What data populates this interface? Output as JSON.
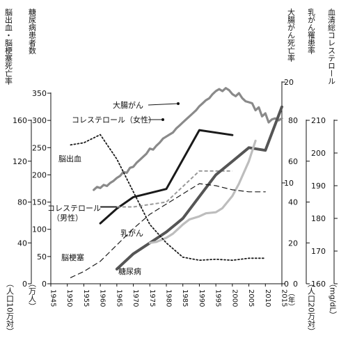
{
  "chart_data": {
    "type": "line",
    "title": "",
    "axis_labels": {
      "brain": "脳出血・脳梗塞死亡率",
      "brain_unit": "（人口10万対）",
      "diabetes": "糖尿病患者数",
      "diabetes_unit": "（万人）",
      "colon": "大腸がん死亡率",
      "breast": "乳がん罹患率",
      "breast_unit": "（人口20万対）",
      "chol": "血清総コレステロール",
      "chol_unit": "（mg/dL）",
      "x_unit": "（年）"
    },
    "axes": {
      "x": {
        "min": 1945,
        "max": 2015,
        "ticks": [
          1945,
          1950,
          1955,
          1960,
          1965,
          1970,
          1975,
          1980,
          1985,
          1990,
          1995,
          2000,
          2005,
          2010,
          2015
        ]
      },
      "brain": {
        "min": 0,
        "max": 160,
        "ticks": [
          0,
          40,
          80,
          120,
          160
        ]
      },
      "diabetes": {
        "min": 0,
        "max": 350,
        "ticks": [
          0,
          50,
          100,
          150,
          200,
          250,
          300,
          350
        ]
      },
      "colon": {
        "min": 0,
        "max": 20,
        "ticks": [
          0,
          10,
          20
        ]
      },
      "breast": {
        "min": 0,
        "max": 80,
        "ticks": [
          0,
          20,
          40,
          60,
          80
        ]
      },
      "chol": {
        "min": 160,
        "max": 210,
        "ticks": [
          160,
          170,
          180,
          190,
          200,
          210
        ]
      }
    },
    "series": [
      {
        "key": "colon",
        "name": "大腸がん",
        "axis": "colon",
        "color": "#8a8a8a",
        "dash": "",
        "x": [
          1958,
          1959,
          1960,
          1961,
          1962,
          1963,
          1964,
          1965,
          1966,
          1967,
          1968,
          1969,
          1970,
          1971,
          1972,
          1973,
          1974,
          1975,
          1976,
          1977,
          1978,
          1979,
          1980,
          1981,
          1982,
          1983,
          1984,
          1985,
          1986,
          1987,
          1988,
          1989,
          1990,
          1991,
          1992,
          1993,
          1994,
          1995,
          1996,
          1997,
          1998,
          1999,
          2000,
          2001,
          2002,
          2003,
          2004,
          2005,
          2006,
          2007,
          2008,
          2009,
          2010,
          2011,
          2012,
          2013,
          2014,
          2015
        ],
        "y": [
          9.3,
          9.6,
          9.5,
          9.8,
          9.7,
          10.0,
          10.2,
          10.5,
          10.7,
          11.1,
          11.0,
          11.5,
          11.6,
          12.0,
          12.3,
          12.6,
          12.9,
          13.4,
          13.3,
          13.7,
          14.0,
          14.4,
          14.6,
          14.8,
          15.0,
          15.4,
          15.7,
          16.0,
          16.3,
          16.6,
          16.9,
          17.2,
          17.6,
          17.9,
          18.2,
          18.4,
          18.8,
          19.1,
          19.3,
          19.1,
          19.4,
          19.2,
          18.8,
          18.6,
          18.9,
          18.4,
          18.1,
          18.0,
          17.9,
          17.2,
          17.5,
          16.6,
          16.9,
          16.0,
          16.3,
          16.4,
          16.2,
          16.4
        ]
      },
      {
        "key": "chol_f",
        "name": "コレステロール（女性）",
        "axis": "chol",
        "color": "#1a1a1a",
        "dash": "",
        "x": [
          1960,
          1965,
          1970,
          1980,
          1990,
          2000
        ],
        "y": [
          178.5,
          183,
          186.5,
          189,
          207,
          205.5
        ]
      },
      {
        "key": "chol_m",
        "name": "コレステロール（男性）",
        "axis": "chol",
        "color": "#8a8a8a",
        "dash": "",
        "x": [
          1960,
          1965,
          1970,
          1980,
          1990,
          2000
        ],
        "y": [
          183.5,
          183.5,
          183.5,
          185,
          194.5,
          194.5
        ],
        "dash_seg_gray": true
      },
      {
        "key": "diabetes",
        "name": "糖尿病",
        "axis": "diabetes",
        "color": "#555555",
        "dash": "",
        "x": [
          1965,
          1970,
          1975,
          1980,
          1985,
          1990,
          1995,
          2000,
          2005,
          2010,
          2015
        ],
        "y": [
          27,
          55,
          75,
          95,
          120,
          160,
          200,
          225,
          250,
          245,
          325
        ]
      },
      {
        "key": "breast",
        "name": "乳がん",
        "axis": "breast",
        "color": "#bdbdbd",
        "dash": "",
        "x": [
          1975,
          1977,
          1980,
          1982,
          1985,
          1987,
          1990,
          1992,
          1995,
          1997,
          2000,
          2002,
          2005,
          2007
        ],
        "y": [
          20,
          20.5,
          22.5,
          24.5,
          29,
          31.5,
          33,
          34.5,
          35,
          37,
          43,
          49,
          60,
          70
        ]
      },
      {
        "key": "hemorrhage",
        "name": "脳出血",
        "axis": "brain",
        "color": "#1a1a1a",
        "dash": "2,3",
        "x": [
          1951,
          1955,
          1960,
          1965,
          1970,
          1975,
          1980,
          1985,
          1990,
          1995,
          2000,
          2005,
          2010
        ],
        "y": [
          136,
          138,
          146,
          122,
          90,
          58,
          40,
          26,
          23,
          24,
          23,
          25,
          25
        ]
      },
      {
        "key": "infarction",
        "name": "脳梗塞",
        "axis": "brain",
        "color": "#1a1a1a",
        "dash": "7,5",
        "x": [
          1951,
          1955,
          1960,
          1965,
          1970,
          1975,
          1980,
          1985,
          1990,
          1995,
          2000,
          2005,
          2010
        ],
        "y": [
          6,
          12,
          22,
          38,
          54,
          68,
          78,
          88,
          98,
          96,
          92,
          90,
          90
        ]
      }
    ],
    "annotations": {
      "colon": "大腸がん",
      "chol_f": "コレステロール（女性）",
      "hemorrhage": "脳出血",
      "chol_m_1": "コレステロール",
      "chol_m_2": "（男性）",
      "breast": "乳がん",
      "infarction": "脳梗塞",
      "diabetes": "糖尿病"
    }
  }
}
